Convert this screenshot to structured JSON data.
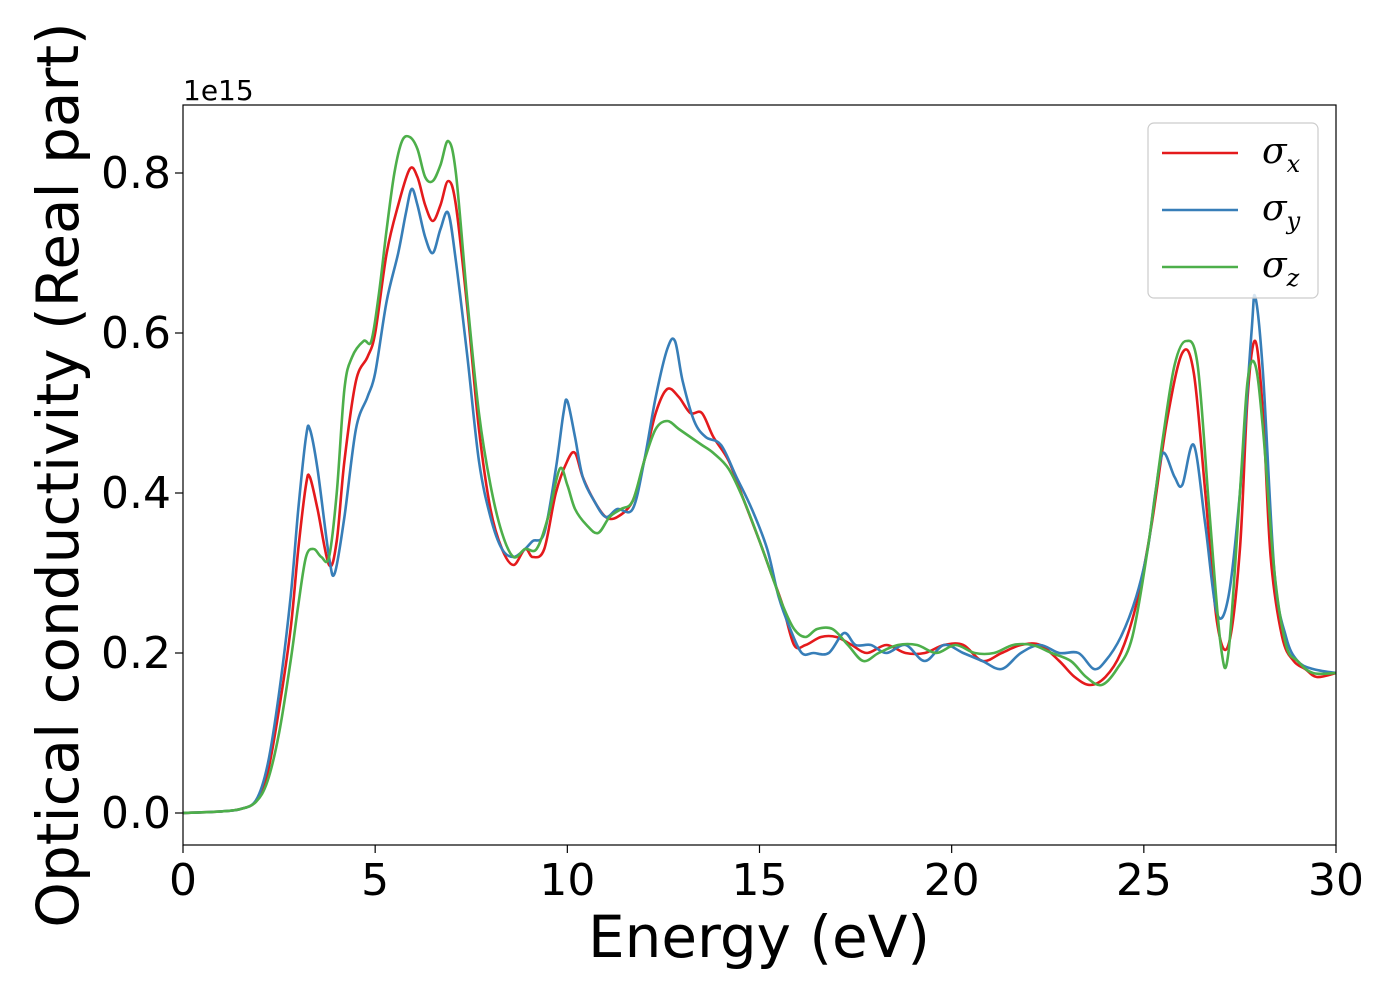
{
  "chart_data": {
    "type": "line",
    "xlabel": "Energy (eV)",
    "ylabel": "Optical conductivity (Real part)",
    "y_offset_label": "1e15",
    "xlim": [
      0,
      30
    ],
    "ylim": [
      -0.04,
      0.885
    ],
    "xticks": [
      0,
      5,
      10,
      15,
      20,
      25,
      30
    ],
    "xtick_labels": [
      "0",
      "5",
      "10",
      "15",
      "20",
      "25",
      "30"
    ],
    "yticks": [
      0.0,
      0.2,
      0.4,
      0.6,
      0.8
    ],
    "ytick_labels": [
      "0.0",
      "0.2",
      "0.4",
      "0.6",
      "0.8"
    ],
    "grid": false,
    "legend_position": "top-right",
    "series": [
      {
        "name": "σx",
        "symbol": "σ",
        "subscript": "x",
        "color": "#e41a1c",
        "x": [
          0,
          1,
          1.5,
          1.9,
          2.2,
          2.5,
          2.8,
          3.0,
          3.2,
          3.3,
          3.5,
          3.8,
          4.0,
          4.2,
          4.5,
          4.8,
          5.0,
          5.3,
          5.6,
          5.9,
          6.1,
          6.3,
          6.5,
          6.7,
          6.9,
          7.1,
          7.4,
          7.7,
          8.0,
          8.3,
          8.6,
          8.9,
          9.1,
          9.4,
          9.7,
          10.0,
          10.2,
          10.4,
          10.7,
          11.0,
          11.3,
          11.7,
          12.0,
          12.3,
          12.6,
          12.9,
          13.2,
          13.5,
          13.8,
          14.2,
          14.6,
          15.0,
          15.3,
          15.6,
          15.9,
          16.2,
          16.6,
          17.0,
          17.4,
          17.8,
          18.3,
          18.8,
          19.3,
          19.8,
          20.3,
          20.8,
          21.3,
          21.8,
          22.3,
          22.8,
          23.2,
          23.6,
          24.0,
          24.4,
          24.8,
          25.2,
          25.6,
          26.0,
          26.3,
          26.6,
          26.9,
          27.2,
          27.5,
          27.7,
          27.9,
          28.1,
          28.3,
          28.6,
          28.9,
          29.2,
          29.5,
          30
        ],
        "y": [
          0.0,
          0.002,
          0.005,
          0.015,
          0.05,
          0.13,
          0.23,
          0.33,
          0.41,
          0.42,
          0.38,
          0.31,
          0.34,
          0.44,
          0.54,
          0.57,
          0.6,
          0.7,
          0.76,
          0.805,
          0.795,
          0.76,
          0.74,
          0.76,
          0.79,
          0.76,
          0.63,
          0.48,
          0.38,
          0.33,
          0.31,
          0.33,
          0.32,
          0.33,
          0.4,
          0.44,
          0.45,
          0.42,
          0.39,
          0.37,
          0.37,
          0.39,
          0.44,
          0.5,
          0.53,
          0.52,
          0.5,
          0.5,
          0.47,
          0.44,
          0.39,
          0.34,
          0.3,
          0.26,
          0.21,
          0.21,
          0.22,
          0.22,
          0.21,
          0.2,
          0.21,
          0.2,
          0.2,
          0.21,
          0.21,
          0.19,
          0.2,
          0.21,
          0.21,
          0.19,
          0.17,
          0.16,
          0.17,
          0.2,
          0.26,
          0.36,
          0.49,
          0.575,
          0.55,
          0.4,
          0.24,
          0.21,
          0.33,
          0.52,
          0.59,
          0.5,
          0.32,
          0.22,
          0.19,
          0.18,
          0.17,
          0.175
        ]
      },
      {
        "name": "σy",
        "symbol": "σ",
        "subscript": "y",
        "color": "#377eb8",
        "x": [
          0,
          1,
          1.5,
          1.9,
          2.2,
          2.5,
          2.8,
          3.0,
          3.2,
          3.3,
          3.5,
          3.8,
          3.95,
          4.2,
          4.5,
          4.8,
          5.0,
          5.3,
          5.6,
          5.8,
          5.95,
          6.1,
          6.3,
          6.5,
          6.7,
          6.9,
          7.1,
          7.4,
          7.7,
          8.0,
          8.3,
          8.6,
          8.9,
          9.1,
          9.4,
          9.7,
          9.9,
          10.0,
          10.2,
          10.4,
          10.7,
          11.0,
          11.3,
          11.7,
          12.0,
          12.3,
          12.6,
          12.8,
          13.0,
          13.3,
          13.6,
          14.0,
          14.4,
          14.8,
          15.2,
          15.5,
          15.8,
          16.1,
          16.4,
          16.8,
          17.2,
          17.5,
          17.9,
          18.3,
          18.8,
          19.3,
          19.8,
          20.3,
          20.8,
          21.3,
          21.8,
          22.3,
          22.8,
          23.3,
          23.7,
          24.0,
          24.4,
          24.8,
          25.1,
          25.3,
          25.5,
          25.8,
          26.0,
          26.3,
          26.6,
          26.9,
          27.2,
          27.5,
          27.8,
          27.9,
          28.1,
          28.4,
          28.7,
          29.0,
          29.4,
          30
        ],
        "y": [
          0.0,
          0.002,
          0.005,
          0.016,
          0.06,
          0.15,
          0.27,
          0.38,
          0.47,
          0.48,
          0.43,
          0.32,
          0.3,
          0.37,
          0.48,
          0.52,
          0.55,
          0.64,
          0.7,
          0.75,
          0.78,
          0.76,
          0.72,
          0.7,
          0.73,
          0.75,
          0.69,
          0.57,
          0.44,
          0.37,
          0.33,
          0.32,
          0.33,
          0.34,
          0.35,
          0.43,
          0.5,
          0.515,
          0.47,
          0.42,
          0.39,
          0.37,
          0.38,
          0.38,
          0.44,
          0.52,
          0.58,
          0.59,
          0.54,
          0.49,
          0.47,
          0.46,
          0.42,
          0.38,
          0.33,
          0.27,
          0.23,
          0.2,
          0.2,
          0.2,
          0.225,
          0.21,
          0.21,
          0.2,
          0.21,
          0.19,
          0.21,
          0.2,
          0.19,
          0.18,
          0.2,
          0.21,
          0.2,
          0.2,
          0.18,
          0.19,
          0.22,
          0.27,
          0.33,
          0.4,
          0.45,
          0.42,
          0.41,
          0.46,
          0.36,
          0.25,
          0.27,
          0.4,
          0.6,
          0.645,
          0.55,
          0.3,
          0.22,
          0.19,
          0.18,
          0.175
        ]
      },
      {
        "name": "σz",
        "symbol": "σ",
        "subscript": "z",
        "color": "#4daf4a",
        "x": [
          0,
          1,
          1.5,
          1.9,
          2.2,
          2.5,
          2.8,
          3.0,
          3.2,
          3.4,
          3.6,
          3.8,
          4.0,
          4.2,
          4.4,
          4.7,
          4.9,
          5.1,
          5.3,
          5.5,
          5.7,
          5.9,
          6.1,
          6.3,
          6.5,
          6.7,
          6.9,
          7.1,
          7.4,
          7.7,
          8.0,
          8.3,
          8.6,
          8.9,
          9.2,
          9.5,
          9.8,
          10.0,
          10.2,
          10.5,
          10.8,
          11.1,
          11.4,
          11.7,
          12.0,
          12.3,
          12.6,
          12.9,
          13.2,
          13.5,
          13.8,
          14.2,
          14.6,
          15.0,
          15.3,
          15.6,
          15.9,
          16.2,
          16.5,
          16.9,
          17.3,
          17.7,
          18.1,
          18.6,
          19.1,
          19.6,
          20.1,
          20.6,
          21.1,
          21.6,
          22.1,
          22.6,
          23.1,
          23.5,
          23.9,
          24.3,
          24.7,
          25.1,
          25.5,
          25.8,
          26.1,
          26.4,
          26.7,
          27.0,
          27.2,
          27.5,
          27.7,
          27.9,
          28.1,
          28.4,
          28.7,
          29.0,
          29.4,
          30
        ],
        "y": [
          0.0,
          0.002,
          0.005,
          0.014,
          0.04,
          0.1,
          0.19,
          0.26,
          0.32,
          0.33,
          0.32,
          0.32,
          0.4,
          0.53,
          0.57,
          0.59,
          0.59,
          0.65,
          0.73,
          0.8,
          0.84,
          0.845,
          0.83,
          0.795,
          0.79,
          0.81,
          0.84,
          0.8,
          0.64,
          0.5,
          0.41,
          0.35,
          0.32,
          0.33,
          0.33,
          0.37,
          0.43,
          0.41,
          0.38,
          0.36,
          0.35,
          0.37,
          0.38,
          0.39,
          0.44,
          0.48,
          0.49,
          0.48,
          0.47,
          0.46,
          0.45,
          0.43,
          0.39,
          0.34,
          0.3,
          0.26,
          0.23,
          0.22,
          0.23,
          0.23,
          0.21,
          0.19,
          0.2,
          0.21,
          0.21,
          0.2,
          0.21,
          0.2,
          0.2,
          0.21,
          0.21,
          0.2,
          0.19,
          0.17,
          0.16,
          0.18,
          0.22,
          0.33,
          0.47,
          0.56,
          0.59,
          0.56,
          0.38,
          0.21,
          0.2,
          0.4,
          0.54,
          0.56,
          0.48,
          0.3,
          0.21,
          0.19,
          0.175,
          0.175
        ]
      }
    ]
  }
}
